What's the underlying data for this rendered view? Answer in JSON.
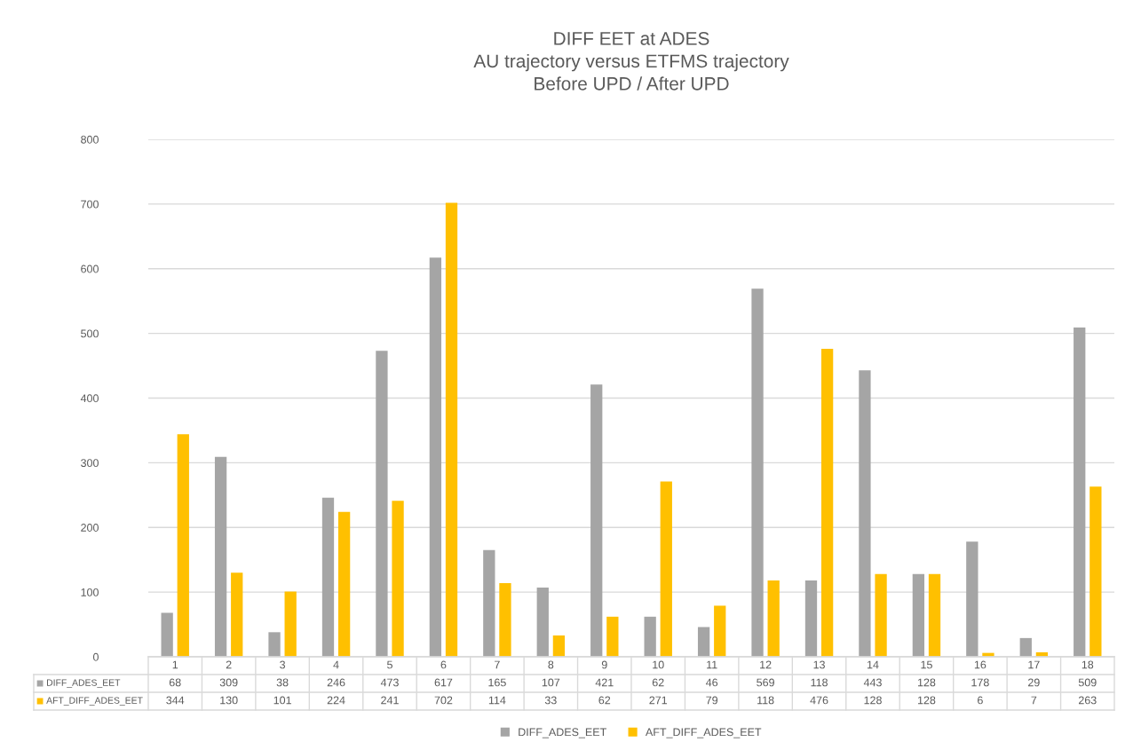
{
  "chart_data": {
    "type": "bar",
    "title": "DIFF EET at ADES\nAU trajectory versus ETFMS trajectory\nBefore UPD / After UPD",
    "categories": [
      "1",
      "2",
      "3",
      "4",
      "5",
      "6",
      "7",
      "8",
      "9",
      "10",
      "11",
      "12",
      "13",
      "14",
      "15",
      "16",
      "17",
      "18"
    ],
    "series": [
      {
        "name": "DIFF_ADES_EET",
        "color": "#a5a5a5",
        "values": [
          68,
          309,
          38,
          246,
          473,
          617,
          165,
          107,
          421,
          62,
          46,
          569,
          118,
          443,
          128,
          178,
          29,
          509
        ]
      },
      {
        "name": "AFT_DIFF_ADES_EET",
        "color": "#ffc000",
        "values": [
          344,
          130,
          101,
          224,
          241,
          702,
          114,
          33,
          62,
          271,
          79,
          118,
          476,
          128,
          128,
          6,
          7,
          263
        ]
      }
    ],
    "ylim": [
      0,
      800
    ],
    "yticks": [
      0,
      100,
      200,
      300,
      400,
      500,
      600,
      700,
      800
    ],
    "grid": "y",
    "legend": "bottom",
    "data_labels": true
  }
}
